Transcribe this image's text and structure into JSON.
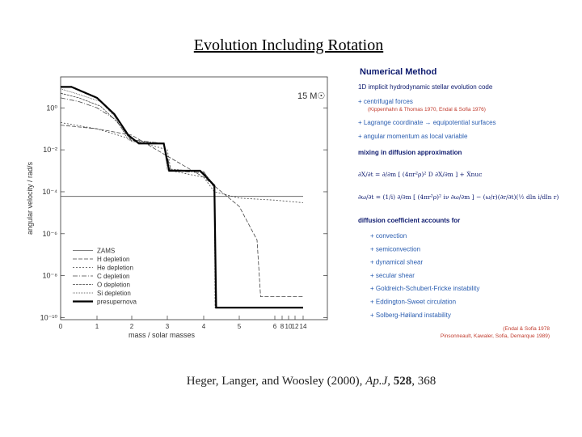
{
  "title": "Evolution Including Rotation",
  "citation": {
    "authors": "Heger, Langer, and Woosley (2000),",
    "journal": "Ap.J",
    "separator": ",",
    "volume": "528",
    "pages": ", 368"
  },
  "chart_data": {
    "type": "line",
    "label": "15 M☉",
    "xlabel": "mass / solar masses",
    "ylabel": "angular velocity / rad/s",
    "xlim": [
      0,
      14
    ],
    "xticks": [
      0,
      1,
      2,
      3,
      4,
      5,
      6,
      8,
      10,
      12,
      14
    ],
    "ylim": [
      8e-11,
      30
    ],
    "yscale": "log",
    "yticks": [
      {
        "value": 1,
        "label": "10⁰"
      },
      {
        "value": 0.01,
        "label": "10⁻²"
      },
      {
        "value": 0.0001,
        "label": "10⁻⁴"
      },
      {
        "value": 1e-06,
        "label": "10⁻⁶"
      },
      {
        "value": 1e-08,
        "label": "10⁻⁸"
      },
      {
        "value": 1e-10,
        "label": "10⁻¹⁰"
      }
    ],
    "legend": "lower left",
    "series": [
      {
        "name": "ZAMS",
        "color": "#555555",
        "dash": "1,0",
        "width": 0.8,
        "x": [
          0,
          14
        ],
        "values": [
          6e-05,
          6e-05
        ]
      },
      {
        "name": "H depletion",
        "color": "#444444",
        "dash": "5,2",
        "width": 0.8,
        "x": [
          0,
          1,
          2,
          3,
          4,
          4.5,
          5,
          5.5,
          5.6,
          14
        ],
        "values": [
          0.15,
          0.1,
          0.05,
          0.005,
          0.0005,
          0.0001,
          2e-05,
          5e-07,
          1e-09,
          1e-09
        ]
      },
      {
        "name": "He depletion",
        "color": "#444444",
        "dash": "2,2",
        "width": 0.8,
        "x": [
          0,
          1,
          1.8,
          2,
          3,
          3.1,
          4,
          4.3,
          5,
          6,
          14
        ],
        "values": [
          0.2,
          0.1,
          0.04,
          0.03,
          0.01,
          0.001,
          0.0005,
          0.0001,
          5e-05,
          4e-05,
          3e-05
        ]
      },
      {
        "name": "C depletion",
        "color": "#444444",
        "dash": "6,2,1,2",
        "width": 0.8,
        "x": [
          0,
          0.5,
          1,
          1.5,
          2,
          2.9,
          3.1,
          4,
          4.3,
          4.35,
          14
        ],
        "values": [
          3,
          2,
          1,
          0.3,
          0.03,
          0.02,
          0.001,
          0.0008,
          0.0002,
          3e-10,
          3e-10
        ]
      },
      {
        "name": "O depletion",
        "color": "#444444",
        "dash": "3,1",
        "width": 0.8,
        "x": [
          0,
          0.5,
          1.1,
          1.6,
          2,
          2.9,
          3.05,
          4,
          4.3,
          4.32,
          14
        ],
        "values": [
          5,
          3,
          1.2,
          0.2,
          0.025,
          0.02,
          0.0012,
          0.0009,
          0.00015,
          3e-10,
          3e-10
        ]
      },
      {
        "name": "Si depletion",
        "color": "#444444",
        "dash": "1,1",
        "width": 0.8,
        "x": [
          0,
          0.4,
          1.1,
          1.5,
          1.9,
          2.9,
          3.0,
          4,
          4.3,
          4.33,
          14
        ],
        "values": [
          8,
          5,
          2,
          0.4,
          0.03,
          0.02,
          0.0011,
          0.0009,
          0.0002,
          3e-10,
          3e-10
        ]
      },
      {
        "name": "presupernova",
        "color": "#000000",
        "dash": "1,0",
        "width": 2.2,
        "x": [
          0,
          0.3,
          1,
          1.5,
          1.9,
          2.2,
          2.9,
          3.05,
          3.9,
          4.3,
          4.35,
          5,
          14
        ],
        "values": [
          10,
          10,
          3,
          0.5,
          0.05,
          0.02,
          0.02,
          0.001,
          0.001,
          0.0002,
          3e-10,
          3e-10,
          3e-10
        ]
      }
    ]
  },
  "panel": {
    "heading": "Numerical Method",
    "intro": "1D implicit hydrodynamic stellar evolution code",
    "features": [
      "+ centrifugal forces",
      "+ Lagrange coordinate → equipotential surfaces",
      "+ angular momentum as local variable"
    ],
    "feature_ref": "(Kippenhahn & Thomas 1970, Endal & Sofia 1976)",
    "mixing": "mixing in diffusion approximation",
    "equations": [
      "∂X/∂t = ∂/∂m [ (4πr²ρ)² D ∂X/∂m ] + Ẋnuc",
      "∂ω/∂t = (1/i) ∂/∂m [ (4πr²ρ)² iν ∂ω/∂m ] − (ω/r)(∂r/∂t)(½ dln i/dln r)"
    ],
    "diffusion": "diffusion coefficient accounts for",
    "processes": [
      "+ convection",
      "+ semiconvection",
      "+ dynamical shear",
      "+ secular shear",
      "+ Goldreich-Schubert-Fricke instability",
      "+ Eddington-Sweet circulation",
      "+ Solberg-Høiland instability"
    ],
    "refs": [
      "(Endal & Sofia 1978",
      "Pinsonneault, Kawaler, Sofia, Demarque 1989)"
    ]
  }
}
